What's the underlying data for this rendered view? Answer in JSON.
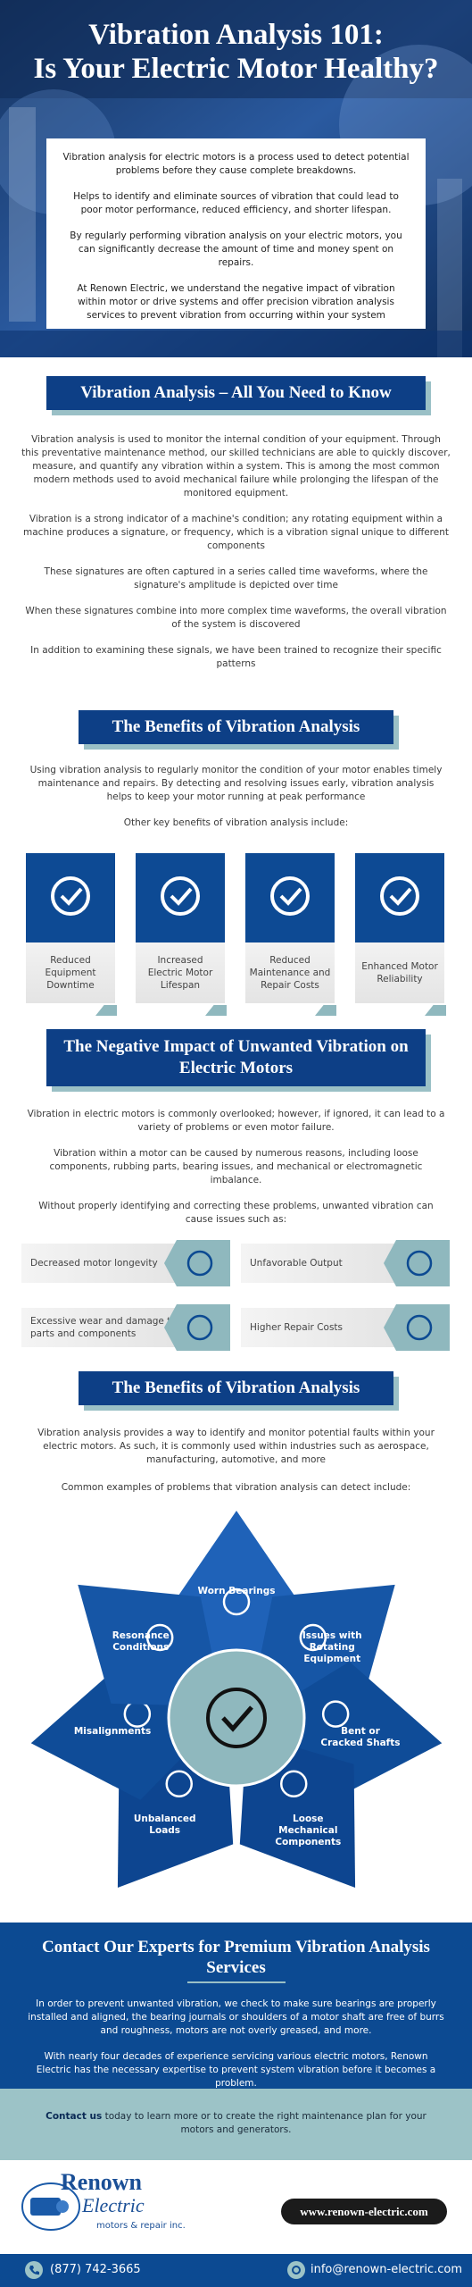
{
  "header": {
    "title": [
      "Vibration Analysis 101:",
      "Is Your Electric Motor Healthy?"
    ],
    "intro": [
      "Vibration analysis for electric motors is a process used to detect potential problems before they cause complete breakdowns.",
      "Helps to identify and eliminate sources of vibration that could lead to poor motor performance, reduced efficiency, and shorter lifespan.",
      "By regularly performing vibration analysis on your electric motors, you can significantly decrease the amount of time and money spent on repairs.",
      "At Renown Electric, we understand the negative impact of vibration within motor or drive systems and offer precision vibration analysis services to prevent vibration from occurring within your system"
    ]
  },
  "overview": {
    "heading": "Vibration Analysis – All You Need to Know",
    "paragraphs": [
      "Vibration analysis is used to monitor the internal condition of your equipment. Through this preventative maintenance method, our skilled technicians are able to quickly discover, measure, and quantify any vibration within a system. This is among the most common modern methods used to avoid mechanical failure while prolonging the lifespan of the monitored equipment.",
      "Vibration is a strong indicator of a machine's condition; any rotating equipment within a machine produces a signature, or frequency, which is a vibration signal unique to different components",
      "These signatures are often captured in a series called time waveforms, where the signature's amplitude is depicted over time",
      "When these signatures combine into more complex time waveforms, the overall vibration of the system is discovered",
      "In addition to examining these signals, we have been trained to recognize their specific patterns"
    ]
  },
  "benefits": {
    "heading": "The Benefits of Vibration Analysis",
    "paragraph": "Using vibration analysis to regularly monitor the condition of your motor enables timely maintenance and repairs. By detecting and resolving issues early, vibration analysis helps to keep your motor running at peak performance",
    "lead": "Other key benefits of vibration analysis include:",
    "cards": [
      "Reduced Equipment Downtime",
      "Increased Electric Motor Lifespan",
      "Reduced Maintenance and Repair Costs",
      "Enhanced Motor Reliability"
    ]
  },
  "impact": {
    "heading": "The Negative Impact of Unwanted Vibration on Electric Motors",
    "paragraphs": [
      "Vibration in electric motors is commonly overlooked; however, if ignored, it can lead to a variety of problems or even motor failure.",
      "Vibration within a motor can be caused by numerous reasons, including loose components, rubbing parts, bearing issues, and mechanical or electromagnetic imbalance.",
      "Without properly identifying and correcting these problems, unwanted vibration can cause issues such as:"
    ],
    "issues": [
      "Decreased motor longevity",
      "Unfavorable Output",
      "Excessive wear and damage to parts and components",
      "Higher Repair Costs"
    ]
  },
  "detection": {
    "heading": "The Benefits of Vibration Analysis",
    "paragraph": "Vibration analysis provides a way to identify and monitor potential faults within your electric motors. As such, it is commonly used within industries such as aerospace, manufacturing, automotive, and more",
    "lead": "Common examples of problems that vibration analysis can detect include:",
    "problems": [
      "Worn Bearings",
      "Issues with Rotating Equipment",
      "Bent or Cracked Shafts",
      "Loose Mechanical Components",
      "Unbalanced Loads",
      "Misalignments",
      "Resonance Conditions"
    ]
  },
  "contact": {
    "heading": "Contact Our Experts for Premium Vibration Analysis Services",
    "paragraphs": [
      "In order to prevent unwanted vibration, we check to make sure bearings are properly installed and aligned, the bearing journals or shoulders of a motor shaft are free of burrs and roughness, motors are not overly greased, and more.",
      "With nearly four decades of experience servicing various electric motors, Renown Electric has the necessary expertise to prevent system vibration before it becomes a problem."
    ],
    "cta_link": "Contact us",
    "cta_text": "today to learn more or to create the right maintenance plan for your motors and generators."
  },
  "footer": {
    "logo_name": "Renown",
    "logo_script": "Electric",
    "logo_tagline": "motors & repair inc.",
    "website": "www.renown-electric.com",
    "phone": "(877) 742-3665",
    "email": "info@renown-electric.com"
  }
}
